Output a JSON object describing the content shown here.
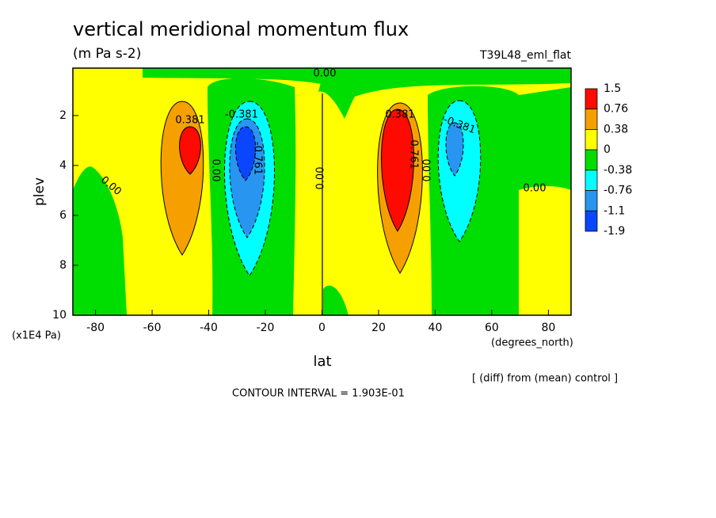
{
  "chart_data": {
    "type": "contour",
    "title": "vertical meridional momentum flux",
    "subtitle": "(m Pa s-2)",
    "run_label": "T39L48_eml_flat",
    "x_label": "lat",
    "x_unit": "(degrees_north)",
    "y_label": "plev",
    "y_unit": "(x1E4 Pa)",
    "xlim": [
      -88,
      88
    ],
    "xticks": [
      -80,
      -60,
      -40,
      -20,
      0,
      20,
      40,
      60,
      80
    ],
    "ylim": [
      10,
      0.1
    ],
    "yticks": [
      2,
      4,
      6,
      8,
      10
    ],
    "levels": [
      1.5,
      0.76,
      0.38,
      0,
      -0.38,
      -0.76,
      -1.1,
      -1.9
    ],
    "colors": [
      "#ff0a00",
      "#f5a000",
      "#ffff00",
      "#00dd00",
      "#00ffff",
      "#2896f0",
      "#0a46ff"
    ],
    "contour_labels": [
      {
        "value": 0.381,
        "label": "0.381"
      },
      {
        "value": -0.381,
        "label": "-0.381"
      },
      {
        "value": -0.761,
        "label": "-0.761"
      },
      {
        "value": 0,
        "label": "0.00"
      },
      {
        "value": 0,
        "label": "0.00"
      },
      {
        "value": 0.381,
        "label": "0.381"
      },
      {
        "value": -0.381,
        "label": "-0.381"
      },
      {
        "value": 0.761,
        "label": "0.761"
      },
      {
        "value": 0,
        "label": "0.00"
      },
      {
        "value": 0,
        "label": "0.00"
      },
      {
        "value": 0,
        "label": "0.00"
      },
      {
        "value": 0,
        "label": "0.00"
      }
    ],
    "annotations": [
      "[ (diff) from (mean) control ]",
      "CONTOUR INTERVAL = 1.903E-01"
    ]
  }
}
